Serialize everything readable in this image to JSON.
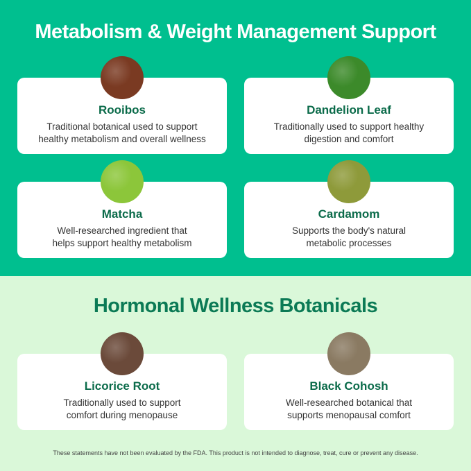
{
  "sections": [
    {
      "title": "Metabolism & Weight Management Support",
      "items": [
        {
          "name": "Rooibos",
          "line1": "Traditional botanical used to support",
          "line2": "healthy metabolism and overall wellness",
          "image_color": "#7a3a22"
        },
        {
          "name": "Dandelion Leaf",
          "line1": "Traditionally used to support healthy",
          "line2": "digestion and comfort",
          "image_color": "#3c8a2a"
        },
        {
          "name": "Matcha",
          "line1": "Well-researched ingredient that",
          "line2": "helps support healthy metabolism",
          "image_color": "#8cc63a"
        },
        {
          "name": "Cardamom",
          "line1": "Supports the body's natural",
          "line2": "metabolic processes",
          "image_color": "#8e9a3a"
        }
      ]
    },
    {
      "title": "Hormonal Wellness Botanicals",
      "items": [
        {
          "name": "Licorice Root",
          "line1": "Traditionally used to support",
          "line2": "comfort during menopause",
          "image_color": "#6b4a3a"
        },
        {
          "name": "Black Cohosh",
          "line1": "Well-researched botanical that",
          "line2": "supports menopausal comfort",
          "image_color": "#8a7a62"
        }
      ]
    }
  ],
  "disclaimer": "These statements have not been evaluated by the FDA. This product is not intended to diagnose, treat, cure or prevent any disease.",
  "colors": {
    "top_bg": "#00bf8f",
    "bottom_bg": "#daf8d9",
    "heading_green": "#0b7a55"
  }
}
